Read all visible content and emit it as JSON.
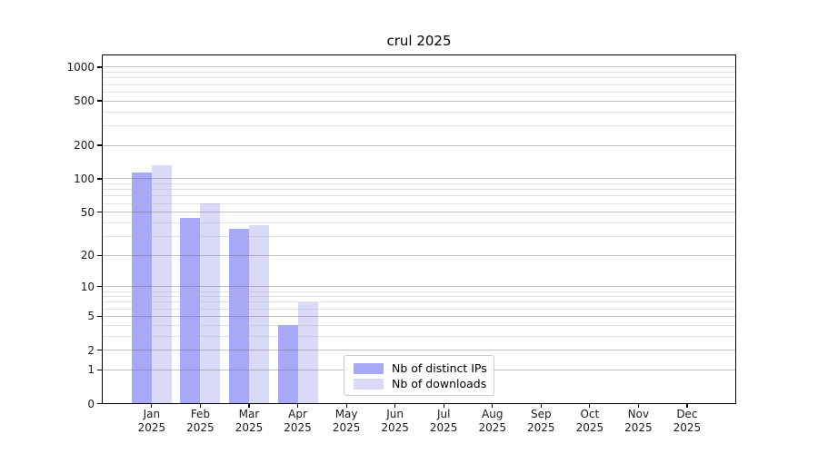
{
  "chart_data": {
    "type": "bar",
    "title": "crul 2025",
    "months": [
      "Jan",
      "Feb",
      "Mar",
      "Apr",
      "May",
      "Jun",
      "Jul",
      "Aug",
      "Sep",
      "Oct",
      "Nov",
      "Dec"
    ],
    "year_label": "2025",
    "series": [
      {
        "name": "Nb of distinct IPs",
        "color": "#a8a8f8",
        "values": [
          115,
          44,
          35,
          4,
          0,
          0,
          0,
          0,
          0,
          0,
          0,
          0
        ]
      },
      {
        "name": "Nb of downloads",
        "color": "#d9d9f8",
        "values": [
          133,
          60,
          38,
          7,
          0,
          0,
          0,
          0,
          0,
          0,
          0,
          0
        ]
      }
    ],
    "y_axis": {
      "scale": "log10(1+x)",
      "major_ticks": [
        0,
        1,
        2,
        5,
        10,
        20,
        50,
        100,
        200,
        500,
        1000
      ],
      "minor_gridlines": [
        3,
        4,
        6,
        7,
        8,
        9,
        30,
        40,
        60,
        70,
        80,
        90,
        300,
        400,
        600,
        700,
        800,
        900
      ],
      "ylim": [
        0,
        1000
      ]
    },
    "legend_position": "bottom-center",
    "grid": true,
    "colors": {
      "major_grid": "#c4c4c4",
      "minor_grid": "#e7e7e7",
      "spine": "#000000",
      "background": "#ffffff",
      "text": "#1a1a1a"
    }
  }
}
